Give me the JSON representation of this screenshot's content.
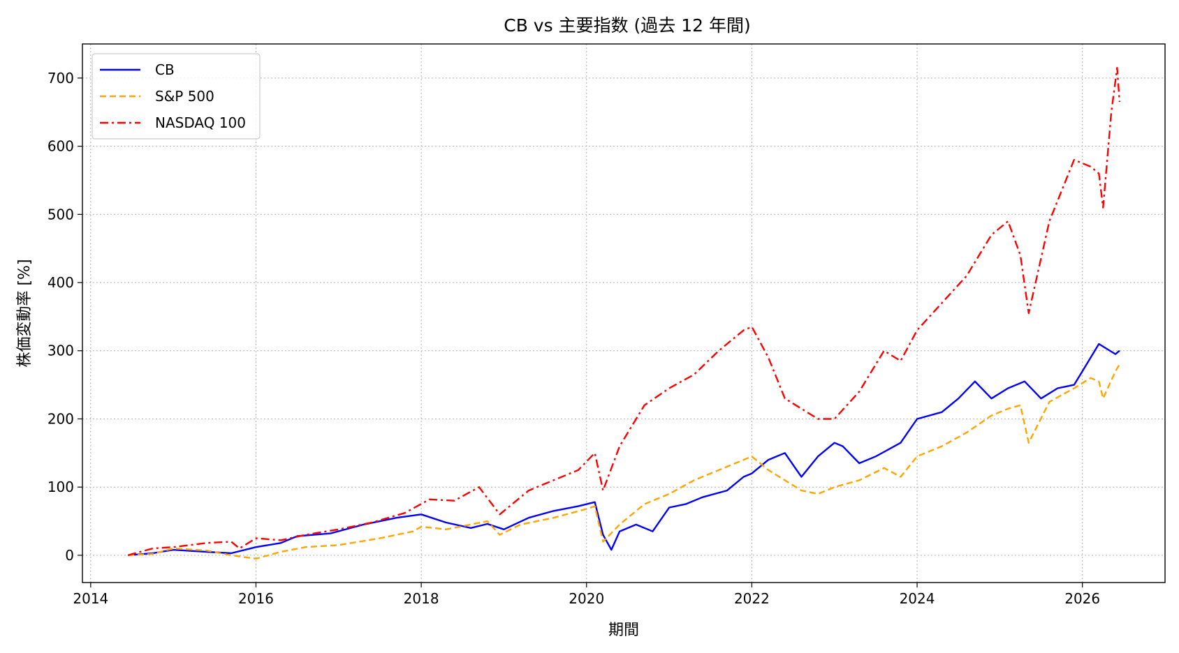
{
  "chart_data": {
    "type": "line",
    "title": "CB vs 主要指数 (過去 12 年間)",
    "xlabel": "期間",
    "ylabel": "株価変動率 [%]",
    "x_ticks": [
      "2014",
      "2016",
      "2018",
      "2020",
      "2022",
      "2024",
      "2026"
    ],
    "y_ticks": [
      "0",
      "100",
      "200",
      "300",
      "400",
      "500",
      "600",
      "700"
    ],
    "xlim": [
      2013.9,
      2027.0
    ],
    "ylim": [
      -40,
      750
    ],
    "grid": true,
    "legend_position": "top-left",
    "series": [
      {
        "name": "CB",
        "color": "#0000ff",
        "style": "solid",
        "x": [
          2014.45,
          2014.75,
          2015.0,
          2015.4,
          2015.7,
          2016.0,
          2016.3,
          2016.5,
          2016.9,
          2017.3,
          2017.7,
          2018.0,
          2018.3,
          2018.6,
          2018.8,
          2019.0,
          2019.3,
          2019.6,
          2019.9,
          2020.1,
          2020.2,
          2020.3,
          2020.4,
          2020.6,
          2020.8,
          2021.0,
          2021.2,
          2021.4,
          2021.7,
          2021.9,
          2022.0,
          2022.2,
          2022.4,
          2022.6,
          2022.8,
          2023.0,
          2023.1,
          2023.3,
          2023.5,
          2023.8,
          2024.0,
          2024.3,
          2024.5,
          2024.7,
          2024.9,
          2025.1,
          2025.3,
          2025.5,
          2025.7,
          2025.9,
          2026.0,
          2026.2,
          2026.4,
          2026.45
        ],
        "values": [
          0,
          3,
          8,
          5,
          3,
          12,
          18,
          28,
          32,
          45,
          55,
          60,
          48,
          40,
          46,
          38,
          55,
          65,
          72,
          78,
          30,
          8,
          35,
          45,
          35,
          70,
          75,
          85,
          95,
          115,
          120,
          140,
          150,
          115,
          145,
          165,
          160,
          135,
          145,
          165,
          200,
          210,
          230,
          255,
          230,
          245,
          255,
          230,
          245,
          250,
          270,
          310,
          295,
          300
        ]
      },
      {
        "name": "S&P 500",
        "color": "#ffa500",
        "style": "dashed",
        "x": [
          2014.45,
          2014.75,
          2015.0,
          2015.4,
          2015.7,
          2016.0,
          2016.3,
          2016.6,
          2017.0,
          2017.5,
          2017.9,
          2018.0,
          2018.3,
          2018.8,
          2018.95,
          2019.2,
          2019.6,
          2020.0,
          2020.1,
          2020.2,
          2020.4,
          2020.7,
          2021.0,
          2021.3,
          2021.6,
          2021.9,
          2022.0,
          2022.2,
          2022.4,
          2022.6,
          2022.8,
          2023.0,
          2023.3,
          2023.6,
          2023.8,
          2024.0,
          2024.3,
          2024.6,
          2024.9,
          2025.1,
          2025.25,
          2025.35,
          2025.6,
          2025.9,
          2026.1,
          2026.2,
          2026.25,
          2026.4,
          2026.45
        ],
        "values": [
          0,
          2,
          10,
          7,
          0,
          -5,
          5,
          12,
          15,
          25,
          35,
          42,
          38,
          50,
          30,
          45,
          55,
          68,
          72,
          20,
          45,
          75,
          90,
          110,
          125,
          140,
          145,
          125,
          110,
          95,
          90,
          100,
          110,
          128,
          115,
          145,
          160,
          180,
          205,
          215,
          220,
          165,
          225,
          245,
          260,
          255,
          230,
          270,
          280
        ]
      },
      {
        "name": "NASDAQ 100",
        "color": "#ff0000",
        "style": "dashdot",
        "x": [
          2014.45,
          2014.75,
          2015.0,
          2015.4,
          2015.7,
          2015.8,
          2016.0,
          2016.3,
          2016.6,
          2017.0,
          2017.4,
          2017.8,
          2018.1,
          2018.4,
          2018.7,
          2018.95,
          2019.3,
          2019.6,
          2019.9,
          2020.1,
          2020.2,
          2020.4,
          2020.7,
          2021.0,
          2021.3,
          2021.6,
          2021.9,
          2022.0,
          2022.2,
          2022.4,
          2022.6,
          2022.8,
          2023.0,
          2023.3,
          2023.6,
          2023.8,
          2024.0,
          2024.3,
          2024.6,
          2024.9,
          2025.1,
          2025.25,
          2025.35,
          2025.6,
          2025.9,
          2026.1,
          2026.2,
          2026.25,
          2026.35,
          2026.42,
          2026.45
        ],
        "values": [
          0,
          10,
          12,
          18,
          20,
          10,
          25,
          22,
          30,
          38,
          48,
          62,
          82,
          80,
          100,
          60,
          95,
          110,
          125,
          150,
          95,
          160,
          220,
          245,
          265,
          300,
          330,
          335,
          290,
          230,
          215,
          200,
          200,
          240,
          300,
          285,
          330,
          370,
          410,
          470,
          490,
          440,
          355,
          490,
          580,
          570,
          560,
          510,
          650,
          715,
          665
        ]
      }
    ]
  }
}
